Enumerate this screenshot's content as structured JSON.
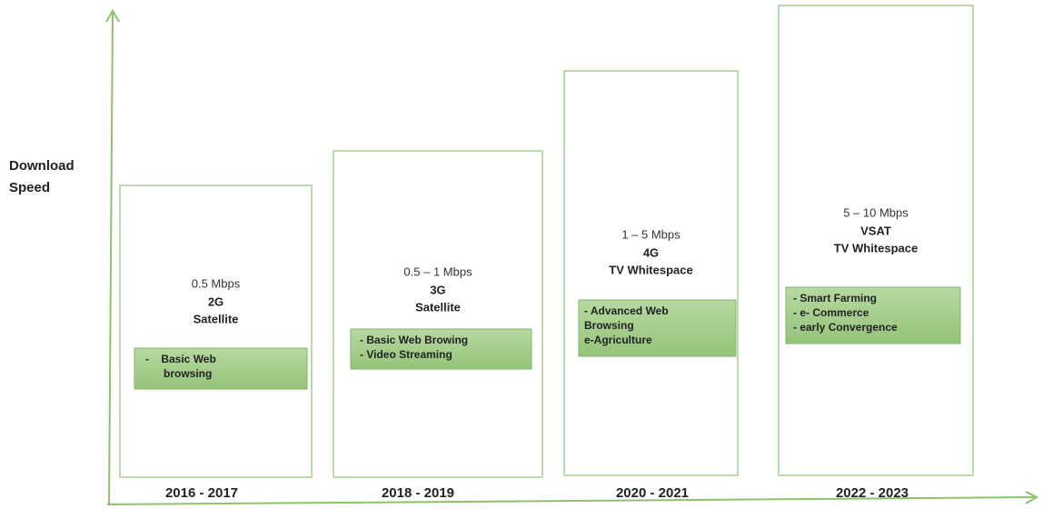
{
  "y_axis_label": [
    "Download",
    "Speed"
  ],
  "columns": [
    {
      "period": "2016 - 2017",
      "speed": "0.5 Mbps",
      "technologies": [
        "2G",
        "Satellite"
      ],
      "services": [
        "-    Basic Web",
        "browsing"
      ]
    },
    {
      "period": "2018 - 2019",
      "speed": "0.5 – 1 Mbps",
      "technologies": [
        "3G",
        "Satellite"
      ],
      "services": [
        "- Basic Web Browing",
        "- Video Streaming"
      ]
    },
    {
      "period": "2020 - 2021",
      "speed": "1 – 5 Mbps",
      "technologies": [
        "4G",
        "TV Whitespace"
      ],
      "services": [
        "- Advanced Web",
        "Browsing",
        "e-Agriculture"
      ]
    },
    {
      "period": "2022 - 2023",
      "speed": "5 –  10 Mbps",
      "technologies": [
        "VSAT",
        "TV Whitespace"
      ],
      "services": [
        "- Smart Farming",
        "- e- Commerce",
        "- early Convergence"
      ]
    }
  ]
}
